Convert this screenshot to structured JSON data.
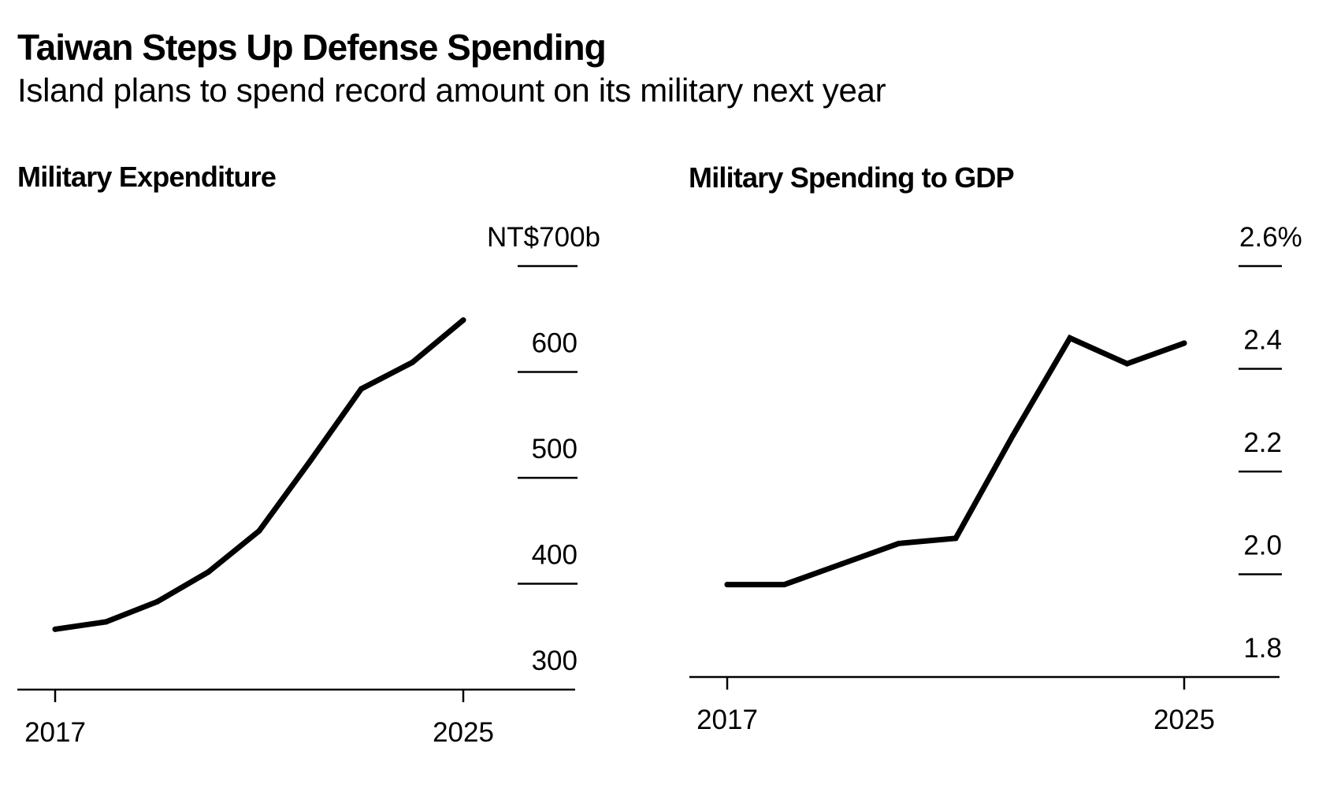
{
  "header": {
    "title": "Taiwan Steps Up Defense Spending",
    "subtitle": "Island plans to spend record amount on its military next year"
  },
  "colors": {
    "line": "#000000",
    "grid": "#000000",
    "text": "#000000",
    "background": "#ffffff"
  },
  "chart_data": [
    {
      "type": "line",
      "title": "Military Expenditure",
      "xlabel": "",
      "ylabel": "",
      "unit_label": "NT$700b",
      "x": [
        2017,
        2018,
        2019,
        2020,
        2021,
        2022,
        2023,
        2024,
        2025
      ],
      "series": [
        {
          "name": "Military expenditure (NT$ billion)",
          "values": [
            357,
            364,
            383,
            411,
            450,
            516,
            584,
            609,
            649
          ]
        }
      ],
      "xlim": [
        2017,
        2025
      ],
      "ylim": [
        300,
        700
      ],
      "x_ticks": [
        2017,
        2025
      ],
      "x_tick_labels": [
        "2017",
        "2025"
      ],
      "y_ticks": [
        300,
        400,
        500,
        600,
        700
      ],
      "y_tick_labels": [
        "300",
        "400",
        "500",
        "600",
        "NT$700b"
      ],
      "y_axis_side": "right",
      "grid": true,
      "legend": "none"
    },
    {
      "type": "line",
      "title": "Military Spending to GDP",
      "xlabel": "",
      "ylabel": "",
      "unit_label": "2.6%",
      "x": [
        2017,
        2018,
        2019,
        2020,
        2021,
        2022,
        2023,
        2024,
        2025
      ],
      "series": [
        {
          "name": "Military spending to GDP (%)",
          "values": [
            1.98,
            1.98,
            2.02,
            2.06,
            2.07,
            2.27,
            2.46,
            2.41,
            2.45
          ]
        }
      ],
      "xlim": [
        2017,
        2025
      ],
      "ylim": [
        1.8,
        2.6
      ],
      "x_ticks": [
        2017,
        2025
      ],
      "x_tick_labels": [
        "2017",
        "2025"
      ],
      "y_ticks": [
        1.8,
        2.0,
        2.2,
        2.4,
        2.6
      ],
      "y_tick_labels": [
        "1.8",
        "2.0",
        "2.2",
        "2.4",
        "2.6%"
      ],
      "y_axis_side": "right",
      "grid": true,
      "legend": "none"
    }
  ]
}
